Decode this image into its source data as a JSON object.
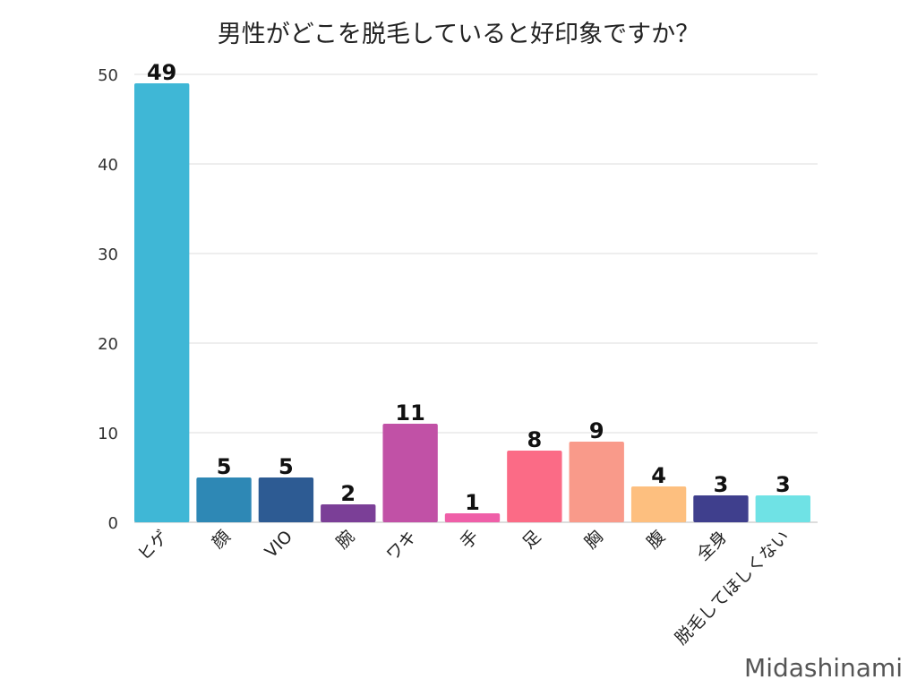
{
  "chart_data": {
    "type": "bar",
    "title": "男性がどこを脱毛していると好印象ですか？",
    "categories": [
      "ヒゲ",
      "顔",
      "VIO",
      "腕",
      "ワキ",
      "手",
      "足",
      "胸",
      "腹",
      "全身",
      "脱毛してほしくない"
    ],
    "values": [
      49,
      5,
      5,
      2,
      11,
      1,
      8,
      9,
      4,
      3,
      3
    ],
    "colors": [
      "#3fb7d6",
      "#2e88b5",
      "#2d5b93",
      "#7b3f97",
      "#c151a6",
      "#ef5fa8",
      "#fb6b86",
      "#f99a8a",
      "#fdbf7f",
      "#3f3f8d",
      "#6fe2e5"
    ],
    "yticks": [
      0,
      10,
      20,
      30,
      40,
      50
    ],
    "ylim": [
      0,
      50
    ],
    "grid": true,
    "xlabel": "",
    "ylabel": ""
  },
  "watermark": "Midashinami"
}
